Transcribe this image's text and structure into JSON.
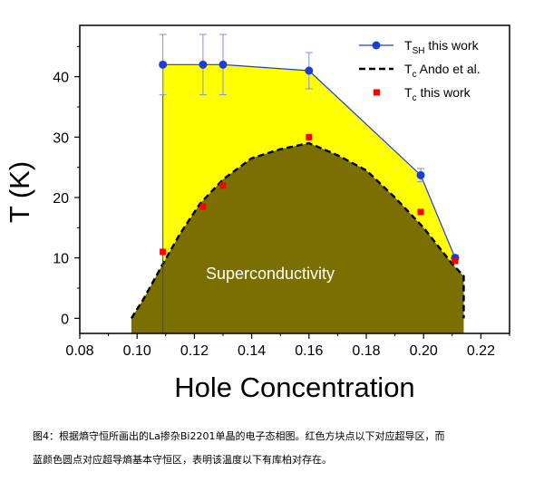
{
  "chart_data": {
    "type": "line",
    "xlabel": "Hole Concentration",
    "ylabel": "T (K)",
    "xlim": [
      0.08,
      0.23
    ],
    "ylim": [
      -2.5,
      48.5
    ],
    "xticks": [
      "0.08",
      "0.10",
      "0.12",
      "0.14",
      "0.16",
      "0.18",
      "0.20",
      "0.22"
    ],
    "yticks": [
      "0",
      "10",
      "20",
      "30",
      "40"
    ],
    "annotation": "Superconductivity",
    "legend_position": "top-right",
    "legend": [
      {
        "main": "T",
        "sub": "SH",
        "rest": " this work"
      },
      {
        "main": "T",
        "sub": "c",
        "rest": " Ando et al."
      },
      {
        "main": "T",
        "sub": "c",
        "rest": " this work"
      }
    ],
    "series": [
      {
        "name": "T_SH this work",
        "style": "line+circle",
        "color": "#1f3dd6",
        "x": [
          0.109,
          0.123,
          0.13,
          0.16,
          0.199,
          0.211
        ],
        "y": [
          42,
          42,
          42,
          41,
          23.7,
          10
        ],
        "err": [
          5,
          5,
          5,
          3,
          1.1,
          0.5
        ]
      },
      {
        "name": "T_c Ando et al.",
        "style": "dashed",
        "color": "#000000",
        "x": [
          0.098,
          0.102,
          0.109,
          0.115,
          0.122,
          0.13,
          0.14,
          0.15,
          0.16,
          0.17,
          0.18,
          0.19,
          0.2,
          0.21,
          0.214,
          0.214
        ],
        "y": [
          0,
          3,
          9,
          14,
          19,
          23,
          26.5,
          28,
          29,
          27,
          24.5,
          20,
          15,
          9,
          7,
          0
        ]
      },
      {
        "name": "T_c this work",
        "style": "square",
        "color": "#ff0000",
        "x": [
          0.109,
          0.123,
          0.13,
          0.16,
          0.199,
          0.211
        ],
        "y": [
          11,
          18.5,
          22,
          30,
          17.6,
          9.5
        ]
      }
    ],
    "colors": {
      "pseudogap_fill": "#ffff00",
      "sc_fill": "#7a6f00",
      "axis": "#000000"
    }
  },
  "caption": {
    "line1": "图4：根据熵守恒所画出的La掺杂Bi2201单晶的电子态相图。红色方块点以下对应超导区，而",
    "line2": "蓝颜色圆点对应超导熵基本守恒区，表明该温度以下有库柏对存在。"
  }
}
